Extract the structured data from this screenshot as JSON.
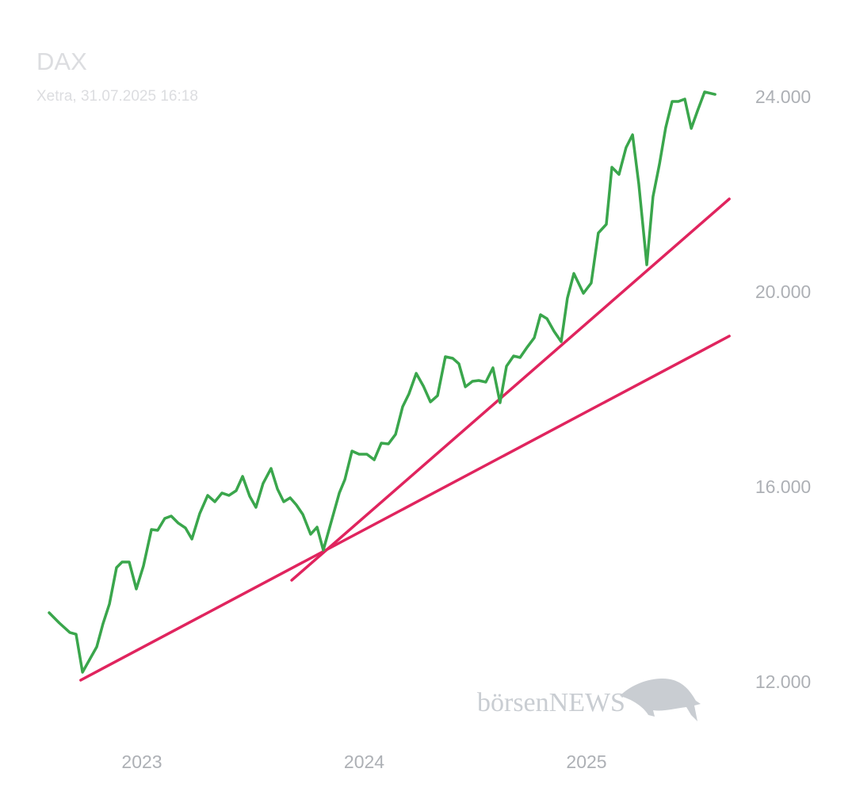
{
  "chart_data": {
    "type": "line",
    "title": "DAX",
    "subtitle": "Xetra, 31.07.2025 16:18",
    "watermark": "börsenNEWS",
    "xlim": [
      2022.5,
      2025.75
    ],
    "xticks": [
      2023,
      2024,
      2025
    ],
    "ylim": [
      11000,
      25000
    ],
    "yticks": [
      {
        "value": 12000,
        "label": "12.000"
      },
      {
        "value": 16000,
        "label": "16.000"
      },
      {
        "value": 20000,
        "label": "20.000"
      },
      {
        "value": 24000,
        "label": "24.000"
      }
    ],
    "grid": false,
    "x": [
      2022.583,
      2022.629,
      2022.676,
      2022.704,
      2022.733,
      2022.765,
      2022.797,
      2022.825,
      2022.854,
      2022.886,
      2022.911,
      2022.943,
      2022.975,
      2023.007,
      2023.043,
      2023.071,
      2023.103,
      2023.132,
      2023.164,
      2023.196,
      2023.225,
      2023.26,
      2023.296,
      2023.328,
      2023.36,
      2023.392,
      2023.424,
      2023.453,
      2023.485,
      2023.513,
      2023.545,
      2023.581,
      2023.61,
      2023.638,
      2023.667,
      2023.695,
      2023.724,
      2023.759,
      2023.788,
      2023.816,
      2023.845,
      2023.888,
      2023.913,
      2023.945,
      2023.977,
      2024.012,
      2024.045,
      2024.077,
      2024.109,
      2024.141,
      2024.173,
      2024.201,
      2024.234,
      2024.266,
      2024.298,
      2024.33,
      2024.365,
      2024.398,
      2024.426,
      2024.455,
      2024.487,
      2024.515,
      2024.547,
      2024.579,
      2024.611,
      2024.64,
      2024.672,
      2024.701,
      2024.733,
      2024.765,
      2024.793,
      2024.822,
      2024.854,
      2024.886,
      2024.914,
      2024.943,
      2024.986,
      2025.021,
      2025.053,
      2025.089,
      2025.114,
      2025.146,
      2025.178,
      2025.207,
      2025.235,
      2025.271,
      2025.299,
      2025.328,
      2025.356,
      2025.385,
      2025.413,
      2025.442,
      2025.471,
      2025.499,
      2025.531,
      2025.578
    ],
    "series": [
      {
        "color": "#3aa64c",
        "values": [
          13447,
          13236,
          13041,
          13008,
          12228,
          12488,
          12748,
          13220,
          13626,
          14374,
          14488,
          14488,
          13935,
          14407,
          15155,
          15138,
          15382,
          15431,
          15285,
          15187,
          14959,
          15480,
          15854,
          15724,
          15903,
          15854,
          15951,
          16244,
          15837,
          15610,
          16098,
          16407,
          15984,
          15724,
          15805,
          15659,
          15463,
          15057,
          15203,
          14732,
          15203,
          15903,
          16179,
          16764,
          16699,
          16699,
          16585,
          16927,
          16911,
          17106,
          17675,
          17935,
          18358,
          18098,
          17772,
          17902,
          18699,
          18667,
          18553,
          18081,
          18195,
          18211,
          18179,
          18472,
          17756,
          18504,
          18715,
          18683,
          18894,
          19089,
          19561,
          19480,
          19220,
          19008,
          19902,
          20407,
          20000,
          20211,
          21236,
          21415,
          22585,
          22439,
          22992,
          23252,
          22244,
          20585,
          21984,
          22650,
          23398,
          23935,
          23935,
          23984,
          23382,
          23740,
          24130,
          24081
        ]
      }
    ],
    "trendlines": [
      {
        "color": "#e0245e",
        "x": [
          2022.725,
          2025.642
        ],
        "values": [
          12065,
          19122
        ]
      },
      {
        "color": "#e0245e",
        "x": [
          2023.674,
          2025.642
        ],
        "values": [
          14114,
          21935
        ]
      }
    ]
  }
}
